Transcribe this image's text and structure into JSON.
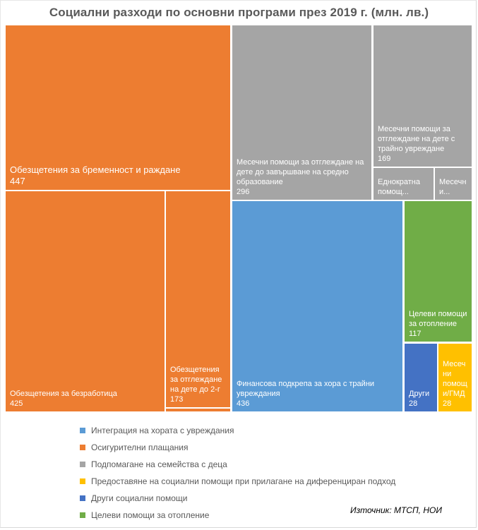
{
  "chart_data": {
    "type": "treemap",
    "title": "Социални разходи по основни програми през 2019 г. (млн. лв.)",
    "unit": "млн. лв.",
    "legend_position": "bottom",
    "groups": [
      {
        "id": "insurance",
        "name": "Осигурителни плащания",
        "color": "#ED7D31"
      },
      {
        "id": "family",
        "name": "Подпомагане на семейства с деца",
        "color": "#A5A5A5"
      },
      {
        "id": "integration",
        "name": "Интеграция  на хората с увреждания",
        "color": "#5B9BD5"
      },
      {
        "id": "heating",
        "name": "Целеви помощи за отопление",
        "color": "#70AD47"
      },
      {
        "id": "other",
        "name": "Други социални помощи",
        "color": "#4472C4"
      },
      {
        "id": "differentiated",
        "name": "Предоставяне на социални помощи при прилагане на диференциран подход",
        "color": "#FFC000"
      }
    ],
    "items": [
      {
        "group": "insurance",
        "label": "Обезщетения за бременност и раждане",
        "value": 447,
        "value_text": "447"
      },
      {
        "group": "insurance",
        "label": "Обезщетения за безработица",
        "value": 425,
        "value_text": "425"
      },
      {
        "group": "insurance",
        "label": "Обезщетения за отглеждане на дете до 2-г",
        "value": 173,
        "value_text": "173"
      },
      {
        "group": "insurance",
        "label": "",
        "value": 4,
        "value_text": ""
      },
      {
        "group": "family",
        "label": "Месечни помощи за отглеждане на дете до завършване на средно образование",
        "value": 296,
        "value_text": "296"
      },
      {
        "group": "family",
        "label": "Месечни помощи за отглеждане на дете с трайно увреждане",
        "value": 169,
        "value_text": "169"
      },
      {
        "group": "family",
        "label": "Еднократна помощ...",
        "value": 45,
        "value_text": ""
      },
      {
        "group": "family",
        "label": "Месечни...",
        "value": 27,
        "value_text": ""
      },
      {
        "group": "integration",
        "label": "Финансова подкрепа за хора с трайни увреждания",
        "value": 436,
        "value_text": "436"
      },
      {
        "group": "heating",
        "label": "Целеви помощи за отопление",
        "value": 117,
        "value_text": "117"
      },
      {
        "group": "other",
        "label": "Други",
        "value": 28,
        "value_text": "28"
      },
      {
        "group": "differentiated",
        "label": "Месечни помощи/ГМД",
        "value": 28,
        "value_text": "28"
      }
    ],
    "display_labels": {
      "0": "Обезщетения за бременност и раждане",
      "1": "Обезщетения за безработица",
      "2": "Обезщетения за отглеждане на дете до 2-г",
      "4": "Месечни помощи за отглеждане на дете до завършване на средно образование",
      "5": "Месечни помощи за отглеждане на дете с трайно увреждане",
      "6": "Еднократна помощ...",
      "7": "Месечн и...",
      "8": "Финансова подкрепа за хора с трайни увреждания",
      "9": "Целеви помощи за отопление",
      "10": "Други",
      "11": "Месеч ни помощ и/ГМД"
    }
  },
  "legend": [
    {
      "label": "Интеграция  на хората с увреждания",
      "color": "#5B9BD5"
    },
    {
      "label": "Осигурителни плащания",
      "color": "#ED7D31"
    },
    {
      "label": "Подпомагане на семейства с деца",
      "color": "#A5A5A5"
    },
    {
      "label": "Предоставяне на социални помощи при прилагане на диференциран подход",
      "color": "#FFC000"
    },
    {
      "label": "Други социални помощи",
      "color": "#4472C4"
    },
    {
      "label": "Целеви помощи за отопление",
      "color": "#70AD47"
    }
  ],
  "source": "Източник: МТСП, НОИ"
}
